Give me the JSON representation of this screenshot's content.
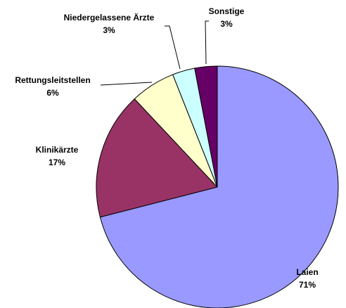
{
  "chart_data": {
    "type": "pie",
    "categories": [
      "Laien",
      "Klinikärzte",
      "Rettungsleitstellen",
      "Niedergelassene Ärzte",
      "Sonstige"
    ],
    "values": [
      71,
      17,
      6,
      3,
      3
    ],
    "value_labels": [
      "71%",
      "17%",
      "6%",
      "3%",
      "3%"
    ],
    "colors": [
      "#9999ff",
      "#993366",
      "#ffffcc",
      "#ccffff",
      "#660066"
    ]
  }
}
